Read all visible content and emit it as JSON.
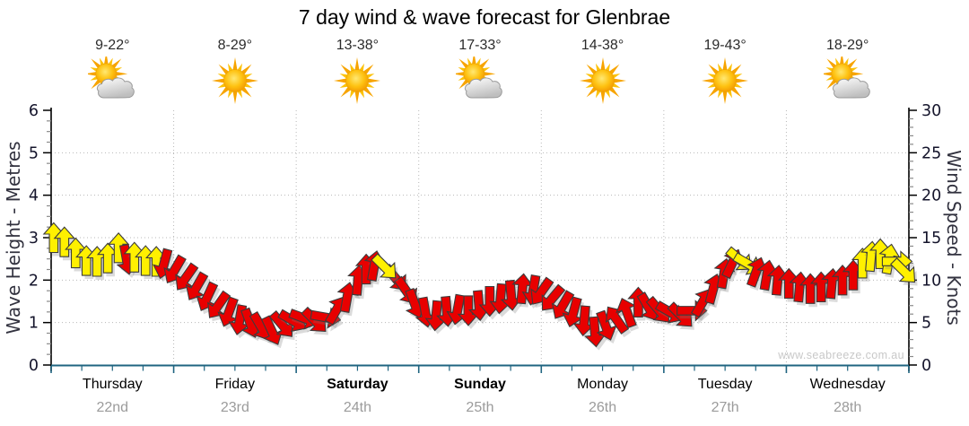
{
  "title": "7 day wind & wave forecast for Glenbrae",
  "watermark": "www.seabreeze.com.au",
  "days": [
    {
      "name": "Thursday",
      "date": "22nd",
      "temp": "9-22°",
      "icon": "sun-cloud",
      "weekend": false
    },
    {
      "name": "Friday",
      "date": "23rd",
      "temp": "8-29°",
      "icon": "sun",
      "weekend": false
    },
    {
      "name": "Saturday",
      "date": "24th",
      "temp": "13-38°",
      "icon": "sun",
      "weekend": true
    },
    {
      "name": "Sunday",
      "date": "25th",
      "temp": "17-33°",
      "icon": "sun-cloud",
      "weekend": true
    },
    {
      "name": "Monday",
      "date": "26th",
      "temp": "14-38°",
      "icon": "sun",
      "weekend": false
    },
    {
      "name": "Tuesday",
      "date": "27th",
      "temp": "19-43°",
      "icon": "sun",
      "weekend": false
    },
    {
      "name": "Wednesday",
      "date": "28th",
      "temp": "18-29°",
      "icon": "sun-cloud",
      "weekend": false
    }
  ],
  "axes": {
    "left": {
      "label": "Wave Height - Metres",
      "ticks": [
        0,
        1,
        2,
        3,
        4,
        5,
        6
      ]
    },
    "right": {
      "label": "Wind Speed - Knots",
      "ticks": [
        0,
        5,
        10,
        15,
        20,
        25,
        30
      ]
    }
  },
  "colors": {
    "arrow_yellow": "#FFF000",
    "arrow_red": "#E80000",
    "arrow_outline": "#3C3C3C",
    "axis_bottom": "#1F6480",
    "grid": "#B8B8B8",
    "axis_dark": "#14142B",
    "tick_minor": "#8A8A8A"
  },
  "chart_data": {
    "type": "wind_direction_arrows",
    "title": "7 day wind & wave forecast for Glenbrae",
    "x_unit": "hours_from_thursday_00",
    "x_range": [
      0,
      168
    ],
    "left_axis": {
      "label": "Wave Height - Metres",
      "range": [
        0,
        6
      ]
    },
    "right_axis": {
      "label": "Wind Speed - Knots",
      "range": [
        0,
        30
      ]
    },
    "note": "kn = wind speed in knots (right axis); dir = arrow heading in degrees (0=up); c = y yellow, r red",
    "points": [
      {
        "t": 0.5,
        "kn": 15.0,
        "dir": 0,
        "c": "y"
      },
      {
        "t": 2.6,
        "kn": 14.5,
        "dir": 0,
        "c": "y"
      },
      {
        "t": 4.8,
        "kn": 13.2,
        "dir": 0,
        "c": "y"
      },
      {
        "t": 6.9,
        "kn": 12.3,
        "dir": 0,
        "c": "y"
      },
      {
        "t": 9.0,
        "kn": 12.2,
        "dir": 0,
        "c": "y"
      },
      {
        "t": 11.1,
        "kn": 12.6,
        "dir": 0,
        "c": "y"
      },
      {
        "t": 13.2,
        "kn": 13.8,
        "dir": 0,
        "c": "y"
      },
      {
        "t": 14.8,
        "kn": 12.4,
        "dir": 170,
        "c": "r"
      },
      {
        "t": 16.3,
        "kn": 12.7,
        "dir": 0,
        "c": "y"
      },
      {
        "t": 18.5,
        "kn": 12.3,
        "dir": 0,
        "c": "y"
      },
      {
        "t": 20.6,
        "kn": 12.2,
        "dir": 0,
        "c": "y"
      },
      {
        "t": 22.1,
        "kn": 11.9,
        "dir": 195,
        "c": "r"
      },
      {
        "t": 24.2,
        "kn": 11.2,
        "dir": 210,
        "c": "r"
      },
      {
        "t": 26.4,
        "kn": 10.3,
        "dir": 215,
        "c": "r"
      },
      {
        "t": 28.5,
        "kn": 9.2,
        "dir": 210,
        "c": "r"
      },
      {
        "t": 30.6,
        "kn": 8.0,
        "dir": 205,
        "c": "r"
      },
      {
        "t": 32.7,
        "kn": 7.0,
        "dir": 215,
        "c": "r"
      },
      {
        "t": 34.8,
        "kn": 6.2,
        "dir": 200,
        "c": "r"
      },
      {
        "t": 36.9,
        "kn": 5.3,
        "dir": 190,
        "c": "r"
      },
      {
        "t": 39.0,
        "kn": 4.9,
        "dir": 160,
        "c": "r"
      },
      {
        "t": 41.1,
        "kn": 4.5,
        "dir": 150,
        "c": "r"
      },
      {
        "t": 43.2,
        "kn": 4.0,
        "dir": 155,
        "c": "r"
      },
      {
        "t": 45.3,
        "kn": 4.7,
        "dir": 140,
        "c": "r"
      },
      {
        "t": 47.4,
        "kn": 5.2,
        "dir": 120,
        "c": "r"
      },
      {
        "t": 49.6,
        "kn": 5.5,
        "dir": 110,
        "c": "r"
      },
      {
        "t": 51.7,
        "kn": 5.2,
        "dir": 135,
        "c": "r"
      },
      {
        "t": 53.8,
        "kn": 5.6,
        "dir": 100,
        "c": "r"
      },
      {
        "t": 55.9,
        "kn": 6.5,
        "dir": 30,
        "c": "r"
      },
      {
        "t": 58.0,
        "kn": 8.0,
        "dir": 10,
        "c": "r"
      },
      {
        "t": 60.1,
        "kn": 10.0,
        "dir": 5,
        "c": "r"
      },
      {
        "t": 61.7,
        "kn": 11.3,
        "dir": 0,
        "c": "r"
      },
      {
        "t": 63.3,
        "kn": 11.7,
        "dir": 10,
        "c": "r"
      },
      {
        "t": 65.4,
        "kn": 11.5,
        "dir": 135,
        "c": "y",
        "top": true
      },
      {
        "t": 67.5,
        "kn": 10.2,
        "dir": 140,
        "c": "r"
      },
      {
        "t": 69.6,
        "kn": 8.7,
        "dir": 145,
        "c": "r"
      },
      {
        "t": 71.2,
        "kn": 7.2,
        "dir": 160,
        "c": "r"
      },
      {
        "t": 73.3,
        "kn": 6.2,
        "dir": 170,
        "c": "r"
      },
      {
        "t": 75.4,
        "kn": 5.8,
        "dir": 185,
        "c": "r"
      },
      {
        "t": 77.5,
        "kn": 6.3,
        "dir": 175,
        "c": "r"
      },
      {
        "t": 79.6,
        "kn": 6.5,
        "dir": 190,
        "c": "r"
      },
      {
        "t": 81.7,
        "kn": 6.4,
        "dir": 180,
        "c": "r"
      },
      {
        "t": 83.8,
        "kn": 7.0,
        "dir": 175,
        "c": "r"
      },
      {
        "t": 85.9,
        "kn": 7.5,
        "dir": 180,
        "c": "r"
      },
      {
        "t": 88.0,
        "kn": 7.8,
        "dir": 185,
        "c": "r"
      },
      {
        "t": 90.1,
        "kn": 8.2,
        "dir": 175,
        "c": "r"
      },
      {
        "t": 92.3,
        "kn": 9.0,
        "dir": 5,
        "c": "r"
      },
      {
        "t": 94.4,
        "kn": 8.8,
        "dir": 190,
        "c": "r"
      },
      {
        "t": 96.0,
        "kn": 8.6,
        "dir": 215,
        "c": "r"
      },
      {
        "t": 98.1,
        "kn": 7.8,
        "dir": 220,
        "c": "r"
      },
      {
        "t": 100.2,
        "kn": 7.0,
        "dir": 210,
        "c": "r"
      },
      {
        "t": 102.3,
        "kn": 6.2,
        "dir": 195,
        "c": "r"
      },
      {
        "t": 104.4,
        "kn": 5.2,
        "dir": 185,
        "c": "r"
      },
      {
        "t": 106.5,
        "kn": 3.9,
        "dir": 175,
        "c": "r"
      },
      {
        "t": 108.6,
        "kn": 4.6,
        "dir": 160,
        "c": "r"
      },
      {
        "t": 110.7,
        "kn": 5.4,
        "dir": 325,
        "c": "r"
      },
      {
        "t": 112.8,
        "kn": 6.2,
        "dir": 340,
        "c": "r"
      },
      {
        "t": 115.0,
        "kn": 7.4,
        "dir": 0,
        "c": "r"
      },
      {
        "t": 117.0,
        "kn": 6.8,
        "dir": 150,
        "c": "r"
      },
      {
        "t": 119.1,
        "kn": 6.4,
        "dir": 140,
        "c": "r"
      },
      {
        "t": 121.3,
        "kn": 6.2,
        "dir": 120,
        "c": "r"
      },
      {
        "t": 123.4,
        "kn": 5.8,
        "dir": 135,
        "c": "r"
      },
      {
        "t": 125.5,
        "kn": 6.4,
        "dir": 90,
        "c": "r"
      },
      {
        "t": 127.6,
        "kn": 7.4,
        "dir": 30,
        "c": "r"
      },
      {
        "t": 129.7,
        "kn": 9.0,
        "dir": 15,
        "c": "r"
      },
      {
        "t": 131.8,
        "kn": 10.8,
        "dir": 10,
        "c": "r"
      },
      {
        "t": 133.4,
        "kn": 12.0,
        "dir": 25,
        "c": "r"
      },
      {
        "t": 134.9,
        "kn": 12.4,
        "dir": 130,
        "c": "y"
      },
      {
        "t": 136.5,
        "kn": 11.9,
        "dir": 120,
        "c": "y"
      },
      {
        "t": 138.1,
        "kn": 11.0,
        "dir": 20,
        "c": "r"
      },
      {
        "t": 140.2,
        "kn": 10.6,
        "dir": 10,
        "c": "r"
      },
      {
        "t": 142.3,
        "kn": 10.0,
        "dir": 5,
        "c": "r"
      },
      {
        "t": 144.5,
        "kn": 9.6,
        "dir": 0,
        "c": "r"
      },
      {
        "t": 146.6,
        "kn": 9.2,
        "dir": 5,
        "c": "r"
      },
      {
        "t": 148.7,
        "kn": 9.0,
        "dir": 0,
        "c": "r"
      },
      {
        "t": 150.8,
        "kn": 9.2,
        "dir": 0,
        "c": "r"
      },
      {
        "t": 152.9,
        "kn": 9.6,
        "dir": 5,
        "c": "r"
      },
      {
        "t": 155.0,
        "kn": 10.0,
        "dir": 0,
        "c": "r"
      },
      {
        "t": 157.1,
        "kn": 10.6,
        "dir": 0,
        "c": "r"
      },
      {
        "t": 158.9,
        "kn": 12.0,
        "dir": 0,
        "c": "y"
      },
      {
        "t": 160.6,
        "kn": 12.8,
        "dir": 5,
        "c": "y"
      },
      {
        "t": 162.4,
        "kn": 13.1,
        "dir": 0,
        "c": "y"
      },
      {
        "t": 164.1,
        "kn": 12.5,
        "dir": 10,
        "c": "y"
      },
      {
        "t": 165.7,
        "kn": 12.2,
        "dir": 90,
        "c": "y"
      },
      {
        "t": 167.1,
        "kn": 11.0,
        "dir": 135,
        "c": "y"
      }
    ]
  }
}
